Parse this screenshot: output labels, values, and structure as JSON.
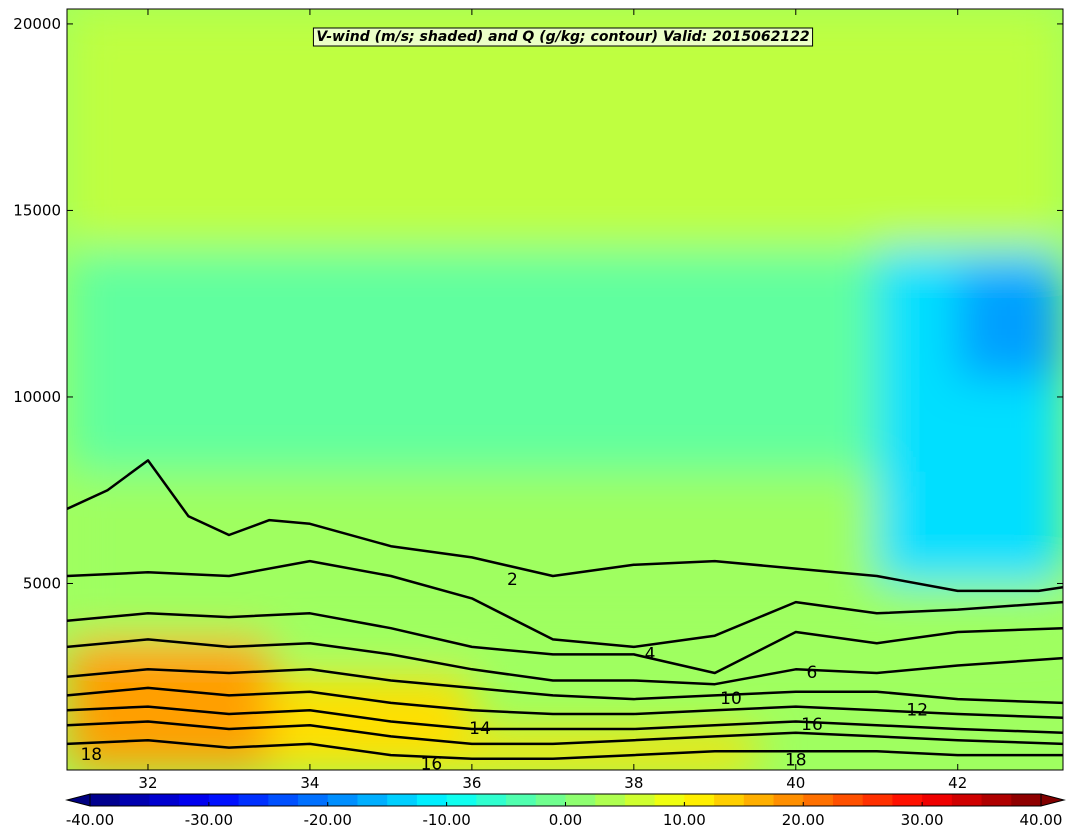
{
  "chart_data": {
    "type": "heatmap",
    "title": "V-wind (m/s; shaded) and Q (g/kg; contour) Valid: 2015062122",
    "xlabel": "",
    "ylabel": "",
    "xlim": [
      31,
      43.3
    ],
    "ylim": [
      0,
      20400
    ],
    "xticks": [
      32,
      34,
      36,
      38,
      40,
      42
    ],
    "xtick_labels": [
      "32",
      "34",
      "36",
      "38",
      "40",
      "42"
    ],
    "yticks": [
      5000,
      10000,
      15000,
      20000
    ],
    "ytick_labels": [
      "5000",
      "10000",
      "15000",
      "20000"
    ],
    "colorbar": {
      "orientation": "horizontal",
      "min": -40,
      "max": 40,
      "step": 2.5,
      "extend": "both",
      "colormap": "jet",
      "ticks": [
        -40,
        -30,
        -20,
        -10,
        0,
        10,
        20,
        30,
        40
      ],
      "tick_labels": [
        "-40.00",
        "-30.00",
        "-20.00",
        "-10.00",
        "0.00",
        "10.00",
        "20.00",
        "30.00",
        "40.00"
      ]
    },
    "shading_field": "V-wind (m/s)",
    "shaded_regions": [
      {
        "x_range": [
          31.0,
          33.5
        ],
        "y_range": [
          0,
          3500
        ],
        "value": 17.5
      },
      {
        "x_range": [
          33.5,
          36.0
        ],
        "y_range": [
          0,
          2500
        ],
        "value": 12.5
      },
      {
        "x_range": [
          36.0,
          39.5
        ],
        "y_range": [
          0,
          1000
        ],
        "value": 12.5
      },
      {
        "x_range": [
          31.0,
          43.3
        ],
        "y_range": [
          3500,
          8000
        ],
        "value": 2.5
      },
      {
        "x_range": [
          31.0,
          43.3
        ],
        "y_range": [
          8000,
          14000
        ],
        "value": -2.5
      },
      {
        "x_range": [
          41.0,
          43.3
        ],
        "y_range": [
          5000,
          14000
        ],
        "value": -12.5
      },
      {
        "x_range": [
          42.0,
          43.3
        ],
        "y_range": [
          10500,
          13500
        ],
        "value": -17.5
      },
      {
        "x_range": [
          31.0,
          43.3
        ],
        "y_range": [
          14000,
          20400
        ],
        "value": 5.0
      }
    ],
    "contour_field": "Q (g/kg)",
    "contour_levels": [
      2,
      4,
      6,
      8,
      10,
      12,
      14,
      16,
      18
    ],
    "contours": [
      {
        "level": 2,
        "x": [
          31.0,
          31.5,
          32.0,
          32.5,
          33.0,
          33.5,
          34.0,
          35.0,
          36.0,
          37.0,
          38.0,
          39.0,
          40.0,
          41.0,
          42.0,
          43.0,
          43.3
        ],
        "y": [
          7000,
          7500,
          8300,
          6800,
          6300,
          6700,
          6600,
          6000,
          5700,
          5200,
          5500,
          5600,
          5400,
          5200,
          4800,
          4800,
          4900
        ]
      },
      {
        "level": 4,
        "x": [
          31.0,
          32.0,
          33.0,
          34.0,
          35.0,
          36.0,
          37.0,
          38.0,
          39.0,
          40.0,
          41.0,
          42.0,
          43.3
        ],
        "y": [
          5200,
          5300,
          5200,
          5600,
          5200,
          4600,
          3500,
          3300,
          3600,
          4500,
          4200,
          4300,
          4500
        ]
      },
      {
        "level": 6,
        "x": [
          31.0,
          32.0,
          33.0,
          34.0,
          35.0,
          36.0,
          37.0,
          38.0,
          39.0,
          40.0,
          41.0,
          42.0,
          43.3
        ],
        "y": [
          4000,
          4200,
          4100,
          4200,
          3800,
          3300,
          3100,
          3100,
          2600,
          3700,
          3400,
          3700,
          3800
        ]
      },
      {
        "level": 8,
        "x": [
          31.0,
          32.0,
          33.0,
          34.0,
          35.0,
          36.0,
          37.0,
          38.0,
          39.0,
          40.0,
          41.0,
          42.0,
          43.3
        ],
        "y": [
          3300,
          3500,
          3300,
          3400,
          3100,
          2700,
          2400,
          2400,
          2300,
          2700,
          2600,
          2800,
          3000
        ]
      },
      {
        "level": 10,
        "x": [
          31.0,
          32.0,
          33.0,
          34.0,
          35.0,
          36.0,
          37.0,
          38.0,
          39.0,
          40.0,
          41.0,
          42.0,
          43.3
        ],
        "y": [
          2500,
          2700,
          2600,
          2700,
          2400,
          2200,
          2000,
          1900,
          2000,
          2100,
          2100,
          1900,
          1800
        ]
      },
      {
        "level": 12,
        "x": [
          31.0,
          32.0,
          33.0,
          34.0,
          35.0,
          36.0,
          37.0,
          38.0,
          39.0,
          40.0,
          41.0,
          42.0,
          43.3
        ],
        "y": [
          2000,
          2200,
          2000,
          2100,
          1800,
          1600,
          1500,
          1500,
          1600,
          1700,
          1600,
          1500,
          1400
        ]
      },
      {
        "level": 14,
        "x": [
          31.0,
          32.0,
          33.0,
          34.0,
          35.0,
          36.0,
          37.0,
          38.0,
          39.0,
          40.0,
          41.0,
          42.0,
          43.3
        ],
        "y": [
          1600,
          1700,
          1500,
          1600,
          1300,
          1100,
          1100,
          1100,
          1200,
          1300,
          1200,
          1100,
          1000
        ]
      },
      {
        "level": 16,
        "x": [
          31.0,
          32.0,
          33.0,
          34.0,
          35.0,
          36.0,
          37.0,
          38.0,
          39.0,
          40.0,
          41.0,
          42.0,
          43.3
        ],
        "y": [
          1200,
          1300,
          1100,
          1200,
          900,
          700,
          700,
          800,
          900,
          1000,
          900,
          800,
          700
        ]
      },
      {
        "level": 18,
        "x": [
          31.0,
          32.0,
          33.0,
          34.0,
          35.0,
          36.0,
          37.0,
          38.0,
          39.0,
          40.0,
          41.0,
          42.0,
          43.3
        ],
        "y": [
          700,
          800,
          600,
          700,
          400,
          300,
          300,
          400,
          500,
          500,
          500,
          400,
          400
        ]
      }
    ],
    "contour_labels": [
      {
        "text": "2",
        "x": 36.5,
        "y": 5100
      },
      {
        "text": "4",
        "x": 38.2,
        "y": 3100
      },
      {
        "text": "6",
        "x": 40.2,
        "y": 2600
      },
      {
        "text": "10",
        "x": 39.2,
        "y": 1900
      },
      {
        "text": "12",
        "x": 41.5,
        "y": 1600
      },
      {
        "text": "14",
        "x": 36.1,
        "y": 1100
      },
      {
        "text": "16",
        "x": 40.2,
        "y": 1200
      },
      {
        "text": "16",
        "x": 35.5,
        "y": 150
      },
      {
        "text": "18",
        "x": 31.3,
        "y": 400
      },
      {
        "text": "18",
        "x": 40.0,
        "y": 250
      }
    ],
    "grid": false,
    "legend": "none"
  }
}
